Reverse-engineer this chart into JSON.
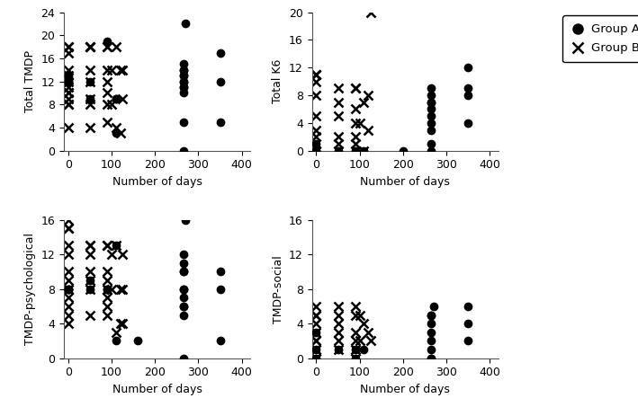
{
  "group_a_tmdp": {
    "x": [
      0,
      0,
      0,
      50,
      50,
      90,
      110,
      110,
      110,
      265,
      265,
      265,
      265,
      265,
      265,
      265,
      265,
      265,
      265,
      265,
      265,
      270,
      350,
      350,
      350
    ],
    "y": [
      12,
      12,
      13,
      9,
      12,
      19,
      3,
      9,
      9,
      0,
      5,
      10,
      11,
      11,
      12,
      12,
      13,
      13,
      14,
      14,
      15,
      22,
      5,
      12,
      17
    ]
  },
  "group_b_tmdp": {
    "x": [
      0,
      0,
      0,
      0,
      0,
      0,
      0,
      0,
      0,
      0,
      0,
      0,
      0,
      50,
      50,
      50,
      50,
      50,
      50,
      50,
      50,
      90,
      90,
      90,
      90,
      90,
      90,
      90,
      100,
      100,
      110,
      110,
      120,
      120,
      125,
      125
    ],
    "y": [
      4,
      8,
      8,
      9,
      10,
      10,
      11,
      12,
      13,
      14,
      17,
      18,
      18,
      4,
      8,
      9,
      12,
      14,
      18,
      18,
      18,
      5,
      8,
      10,
      12,
      14,
      18,
      18,
      8,
      14,
      4,
      18,
      3,
      14,
      9,
      14
    ]
  },
  "group_a_k6": {
    "x": [
      0,
      0,
      0,
      0,
      50,
      90,
      110,
      200,
      265,
      265,
      265,
      265,
      265,
      265,
      265,
      265,
      265,
      265,
      350,
      350,
      350,
      350
    ],
    "y": [
      0,
      0,
      0,
      1,
      0,
      0,
      0,
      0,
      0,
      1,
      3,
      4,
      5,
      6,
      7,
      7,
      8,
      9,
      4,
      8,
      9,
      12
    ]
  },
  "group_b_k6": {
    "x": [
      0,
      0,
      0,
      0,
      0,
      0,
      0,
      0,
      0,
      0,
      0,
      0,
      50,
      50,
      50,
      50,
      50,
      50,
      90,
      90,
      90,
      90,
      90,
      90,
      90,
      100,
      110,
      110,
      120,
      120,
      125
    ],
    "y": [
      0,
      0,
      0,
      1,
      2,
      3,
      5,
      8,
      10,
      11,
      11,
      11,
      0,
      1,
      2,
      5,
      7,
      9,
      0,
      1,
      2,
      4,
      6,
      9,
      9,
      4,
      0,
      7,
      3,
      8,
      20
    ]
  },
  "group_a_tmdp_psych": {
    "x": [
      0,
      0,
      0,
      50,
      50,
      90,
      90,
      110,
      110,
      160,
      265,
      265,
      265,
      265,
      265,
      265,
      265,
      265,
      265,
      265,
      265,
      270,
      350,
      350,
      350
    ],
    "y": [
      8,
      8,
      8,
      8,
      9,
      8,
      8,
      2,
      13,
      2,
      0,
      5,
      6,
      6,
      7,
      8,
      8,
      10,
      10,
      11,
      12,
      16,
      2,
      8,
      10
    ]
  },
  "group_b_tmdp_psych": {
    "x": [
      0,
      0,
      0,
      0,
      0,
      0,
      0,
      0,
      0,
      0,
      0,
      0,
      0,
      50,
      50,
      50,
      50,
      50,
      50,
      50,
      90,
      90,
      90,
      90,
      90,
      90,
      90,
      90,
      100,
      100,
      110,
      110,
      120,
      120,
      125,
      125,
      125
    ],
    "y": [
      4,
      5,
      6,
      7,
      8,
      8,
      9,
      10,
      12,
      13,
      15,
      15,
      16,
      5,
      8,
      9,
      10,
      12,
      13,
      13,
      5,
      6,
      7,
      8,
      9,
      10,
      13,
      13,
      8,
      12,
      3,
      13,
      4,
      8,
      4,
      8,
      12
    ]
  },
  "group_a_tmdp_social": {
    "x": [
      0,
      0,
      0,
      50,
      90,
      90,
      110,
      265,
      265,
      265,
      265,
      265,
      265,
      265,
      265,
      270,
      350,
      350,
      350
    ],
    "y": [
      0,
      1,
      3,
      1,
      0,
      1,
      1,
      0,
      0,
      1,
      2,
      3,
      4,
      5,
      5,
      6,
      2,
      4,
      6
    ]
  },
  "group_b_tmdp_social": {
    "x": [
      0,
      0,
      0,
      0,
      0,
      0,
      0,
      0,
      0,
      0,
      0,
      0,
      50,
      50,
      50,
      50,
      50,
      50,
      90,
      90,
      90,
      90,
      90,
      90,
      100,
      100,
      110,
      120,
      125
    ],
    "y": [
      0,
      0,
      0,
      1,
      1,
      2,
      2,
      3,
      4,
      5,
      5,
      6,
      1,
      2,
      3,
      4,
      5,
      6,
      0,
      1,
      2,
      3,
      5,
      6,
      2,
      5,
      4,
      3,
      2
    ]
  },
  "xlim": [
    -10,
    420
  ],
  "tmdp_ylim": [
    0,
    24
  ],
  "k6_ylim": [
    0,
    20
  ],
  "psych_ylim": [
    0,
    16
  ],
  "social_ylim": [
    0,
    16
  ],
  "tmdp_yticks": [
    0,
    4,
    8,
    12,
    16,
    20,
    24
  ],
  "k6_yticks": [
    0,
    4,
    8,
    12,
    16,
    20
  ],
  "psych_yticks": [
    0,
    4,
    8,
    12,
    16
  ],
  "social_yticks": [
    0,
    4,
    8,
    12,
    16
  ],
  "xticks": [
    0,
    100,
    200,
    300,
    400
  ],
  "xlabel": "Number of days",
  "tmdp_ylabel": "Total TMDP",
  "k6_ylabel": "Total K6",
  "psych_ylabel": "TMDP-psychological",
  "social_ylabel": "TMDP-social",
  "marker_a": "o",
  "marker_b": "x",
  "color_a": "black",
  "color_b": "black",
  "markersize_a": 6,
  "markersize_b": 7,
  "markeredge_b": 1.8,
  "legend_group_a": "Group A",
  "legend_group_b": "Group B",
  "tick_fontsize": 9,
  "label_fontsize": 9
}
